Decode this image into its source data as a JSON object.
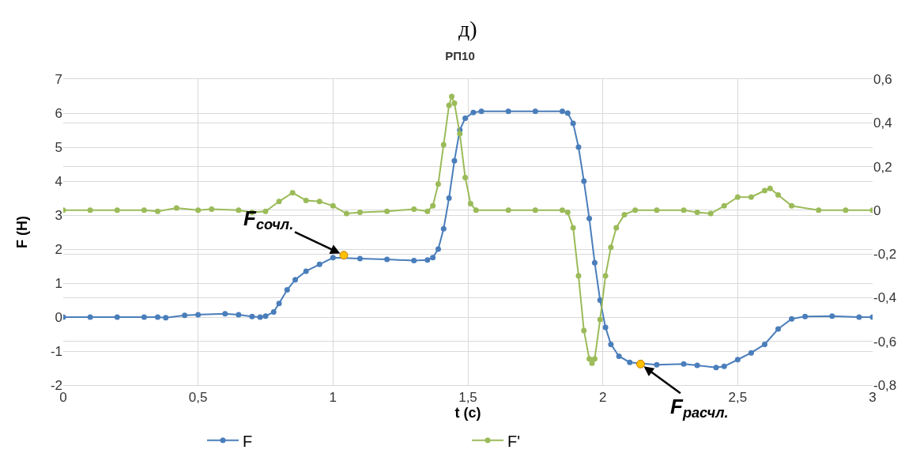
{
  "chart_data": {
    "type": "line",
    "title": "РП10",
    "xlabel": "t (c)",
    "ylabel": "F (Н)",
    "annotations": [
      "д)",
      {
        "text": "F$_{сочл.}$",
        "x": 1.04,
        "y": 1.82
      },
      {
        "text": "F$_{расчл.}$",
        "x": 2.14,
        "y": -1.38
      }
    ],
    "xlim": [
      0,
      3
    ],
    "xticks": [
      0,
      {
        "value": 0.5,
        "label": "0,5"
      },
      1,
      {
        "value": 1.5,
        "label": "1,5"
      },
      2,
      {
        "value": 2.5,
        "label": "2,5"
      },
      3
    ],
    "ylim": [
      -2,
      7
    ],
    "yticks": [
      -2,
      -1,
      0,
      1,
      2,
      3,
      4,
      5,
      6,
      7
    ],
    "y2lim": [
      -0.8,
      0.6
    ],
    "y2ticks": [
      {
        "value": -0.8,
        "label": "-0,8"
      },
      {
        "value": -0.6,
        "label": "-0,6"
      },
      {
        "value": -0.4,
        "label": "-0,4"
      },
      {
        "value": -0.2,
        "label": "-0,2"
      },
      0,
      {
        "value": 0.2,
        "label": "0,2"
      },
      {
        "value": 0.4,
        "label": "0,4"
      },
      {
        "value": 0.6,
        "label": "0,6"
      }
    ],
    "grid": true,
    "legend": "bottom",
    "marker": "circle",
    "line_style": "solid",
    "series": [
      {
        "name": "F",
        "color": "#4a7ebb",
        "x": [
          0,
          0.1,
          0.2,
          0.3,
          0.35,
          0.38,
          0.45,
          0.5,
          0.6,
          0.65,
          0.7,
          0.73,
          0.75,
          0.78,
          0.8,
          0.83,
          0.86,
          0.9,
          0.95,
          1.0,
          1.1,
          1.2,
          1.3,
          1.35,
          1.37,
          1.39,
          1.41,
          1.43,
          1.45,
          1.47,
          1.49,
          1.52,
          1.55,
          1.65,
          1.75,
          1.85,
          1.87,
          1.89,
          1.91,
          1.93,
          1.95,
          1.97,
          1.99,
          2.01,
          2.03,
          2.06,
          2.1,
          2.2,
          2.3,
          2.35,
          2.42,
          2.45,
          2.5,
          2.55,
          2.6,
          2.65,
          2.7,
          2.75,
          2.85,
          2.95,
          3.0
        ],
        "values": [
          0,
          0,
          0,
          0,
          0,
          -0.02,
          0.05,
          0.07,
          0.1,
          0.07,
          0.02,
          0,
          0.03,
          0.15,
          0.4,
          0.8,
          1.1,
          1.35,
          1.55,
          1.75,
          1.72,
          1.7,
          1.66,
          1.68,
          1.75,
          2.0,
          2.6,
          3.5,
          4.6,
          5.5,
          5.85,
          6.02,
          6.05,
          6.05,
          6.05,
          6.05,
          6.0,
          5.7,
          5.0,
          4.0,
          2.9,
          1.6,
          0.5,
          -0.3,
          -0.8,
          -1.15,
          -1.33,
          -1.4,
          -1.38,
          -1.42,
          -1.48,
          -1.45,
          -1.25,
          -1.05,
          -0.8,
          -0.35,
          -0.05,
          0.02,
          0.03,
          0.0,
          0.0
        ]
      },
      {
        "name": "F'",
        "color": "#9bbb59",
        "axis": "y2",
        "x": [
          0,
          0.1,
          0.2,
          0.3,
          0.35,
          0.42,
          0.5,
          0.55,
          0.65,
          0.7,
          0.75,
          0.8,
          0.85,
          0.9,
          0.95,
          1.0,
          1.05,
          1.1,
          1.2,
          1.3,
          1.35,
          1.37,
          1.39,
          1.41,
          1.43,
          1.44,
          1.45,
          1.47,
          1.49,
          1.51,
          1.53,
          1.65,
          1.75,
          1.85,
          1.87,
          1.89,
          1.91,
          1.93,
          1.95,
          1.96,
          1.97,
          1.99,
          2.01,
          2.03,
          2.05,
          2.08,
          2.12,
          2.2,
          2.3,
          2.35,
          2.4,
          2.45,
          2.5,
          2.55,
          2.6,
          2.62,
          2.65,
          2.7,
          2.8,
          2.9,
          3.0
        ],
        "values": [
          0,
          0,
          0,
          0,
          -0.005,
          0.01,
          0,
          0.005,
          0,
          -0.01,
          -0.005,
          0.04,
          0.08,
          0.045,
          0.04,
          0.02,
          -0.015,
          -0.01,
          -0.005,
          0.005,
          -0.005,
          0.02,
          0.12,
          0.3,
          0.48,
          0.52,
          0.49,
          0.35,
          0.15,
          0.03,
          0,
          0,
          0,
          0,
          -0.01,
          -0.08,
          -0.3,
          -0.55,
          -0.68,
          -0.7,
          -0.68,
          -0.5,
          -0.3,
          -0.17,
          -0.08,
          -0.02,
          0,
          0,
          0,
          -0.01,
          -0.015,
          0.02,
          0.06,
          0.06,
          0.09,
          0.1,
          0.07,
          0.02,
          0,
          0,
          0
        ]
      },
      {
        "type": "scatter",
        "color": "#ffc000",
        "x": [
          1.04,
          2.14
        ],
        "values": [
          1.82,
          -1.38
        ]
      }
    ]
  }
}
